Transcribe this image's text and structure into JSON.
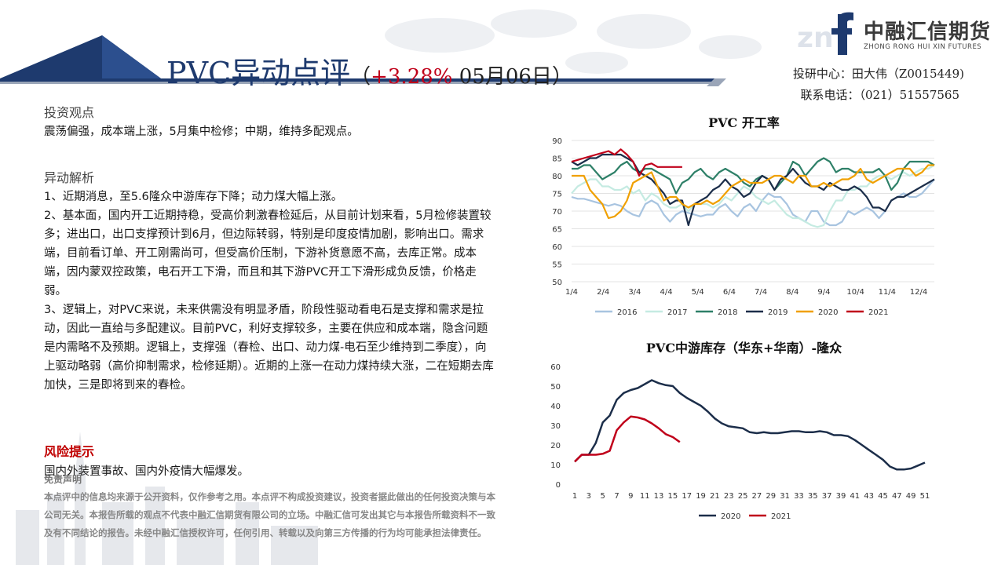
{
  "header": {
    "title_main": "PVC异动点评",
    "title_paren_open": "（",
    "title_pct": "+3.28%",
    "title_date": " 05月06日",
    "title_paren_close": "）",
    "contact_center": "投研中心：田大伟（Z0015449)",
    "contact_phone": "联系电话：（021）51557565",
    "logo_cn": "中融汇信期货",
    "logo_en": "ZHONG RONG HUI XIN FUTURES",
    "colors": {
      "title": "#1e3a6e",
      "pct": "#c0001a",
      "banner": "#1e3a6e"
    }
  },
  "sections": {
    "view_head": "投资观点",
    "view_text": "震荡偏强，成本端上涨，5月集中检修；中期，维持多配观点。",
    "analysis_head": "异动解析",
    "analysis_paras": [
      "1、近期消息，至5.6隆众中游库存下降；动力煤大幅上涨。",
      "2、基本面，国内开工近期持稳，受高价刺激春检延后，从目前计划来看，5月检修装置较多；进出口，出口支撑预计到6月，但边际转弱，特别是印度疫情加剧，影响出口。需求端，目前看订单、开工刚需尚可，但受高价压制，下游补货意愿不高，去库正常。成本端，因内蒙双控政策，电石开工下滑，而且和其下游PVC开工下滑形成负反馈，价格走弱。",
      "3、逻辑上，对PVC来说，未来供需没有明显矛盾，阶段性驱动看电石是支撑和需求是拉动，因此一直给与多配建议。目前PVC，利好支撑较多，主要在供应和成本端，隐含问题是内需略不及预期。逻辑上，支撑强（春检、出口、动力煤-电石至少维持到二季度），向上驱动略弱（高价抑制需求，检修延期）。近期的上涨一在动力煤持续大涨，二在短期去库加快，三是即将到来的春检。"
    ],
    "risk_head": "风险提示",
    "risk_text": "国内外装置事故、国内外疫情大幅爆发。",
    "disclaimer_head": "免责声明",
    "disclaimer_text": "本点评中的信息均来源于公开资料，仅作参考之用。本点评不构成投资建议，投资者据此做出的任何投资决策与本公司无关。本报告所载的观点不代表中融汇信期货有限公司的立场。中融汇信可发出其它与本报告所载资料不一致及有不同结论的报告。未经中融汇信授权许可，任何引用、转载以及向第三方传播的行为均可能承担法律责任。"
  },
  "chart_data": [
    {
      "type": "line",
      "title": "PVC 开工率",
      "x_ticks": [
        "1/4",
        "2/4",
        "3/4",
        "4/4",
        "5/4",
        "6/4",
        "7/4",
        "8/4",
        "9/4",
        "10/4",
        "11/4",
        "12/4"
      ],
      "ylim": [
        50,
        90
      ],
      "y_ticks": [
        50,
        55,
        60,
        65,
        70,
        75,
        80,
        85,
        90
      ],
      "grid": true,
      "legend": "bottom",
      "series": [
        {
          "name": "2016",
          "color": "#a8c4e0",
          "values": [
            74,
            73.5,
            73.5,
            73,
            72.5,
            72,
            71.5,
            72,
            71.5,
            70,
            69,
            68.5,
            72,
            73,
            72,
            69,
            67,
            69,
            70,
            69.5,
            69,
            68.5,
            69,
            69,
            71,
            72,
            70,
            68.5,
            71,
            72,
            70,
            73,
            75,
            74,
            74,
            72,
            69,
            68,
            67,
            70,
            70,
            67,
            66,
            66,
            67,
            70,
            69,
            70,
            71,
            70,
            68,
            70,
            73,
            74,
            75,
            74,
            74,
            75,
            77,
            79
          ]
        },
        {
          "name": "2017",
          "color": "#c5ebe2",
          "values": [
            75,
            77,
            78,
            79,
            79,
            77,
            77,
            76,
            76,
            77,
            75,
            76,
            73,
            75,
            74,
            72,
            71,
            71,
            72,
            70,
            72,
            72,
            72,
            71,
            72,
            74,
            73,
            75,
            77,
            76,
            74,
            73,
            72,
            73,
            71,
            69,
            68,
            68,
            67,
            66,
            65.5,
            66,
            70,
            73,
            73,
            76,
            76,
            77,
            77,
            79,
            80,
            80,
            79,
            80,
            81,
            80,
            81,
            82,
            82,
            83
          ]
        },
        {
          "name": "2018",
          "color": "#2e8068",
          "values": [
            82,
            82,
            83,
            83,
            81,
            79,
            80,
            81,
            83,
            84,
            82,
            81,
            82,
            82,
            81,
            80,
            79,
            75,
            78,
            79,
            81,
            82,
            80,
            79,
            81,
            82,
            81,
            80,
            78,
            77,
            79,
            80,
            79,
            76,
            78,
            80,
            84,
            83,
            80,
            82,
            84,
            85,
            84,
            81,
            82,
            82,
            81,
            81,
            81,
            81,
            82,
            80,
            76,
            78,
            82,
            84,
            84,
            84,
            84,
            83
          ]
        },
        {
          "name": "2019",
          "color": "#1c2e4a",
          "values": [
            84,
            83,
            84,
            85,
            85,
            86,
            86,
            86,
            86,
            85,
            84,
            81,
            80,
            79,
            77,
            75,
            72,
            73,
            73,
            66,
            72,
            73,
            74,
            76,
            77,
            79,
            77,
            76,
            74,
            75,
            78,
            80,
            79,
            76,
            79,
            80,
            82,
            80,
            78,
            77,
            77,
            76,
            78,
            77,
            76,
            76,
            77,
            76,
            74,
            71,
            71,
            70,
            73,
            74,
            74,
            75,
            76,
            77,
            78,
            79
          ]
        },
        {
          "name": "2020",
          "color": "#f0a000",
          "values": [
            80,
            80,
            80,
            76,
            74,
            72,
            68,
            68.5,
            70,
            73,
            78,
            79,
            80,
            81,
            77,
            73,
            74,
            74,
            72,
            71,
            72,
            72,
            73,
            72,
            73,
            75,
            77,
            78,
            79,
            78,
            78,
            78,
            79,
            80,
            80,
            79,
            78,
            80,
            80,
            77,
            77,
            78,
            77,
            78,
            79,
            79,
            80,
            82,
            79,
            78,
            79,
            80,
            81,
            82,
            82,
            82,
            80,
            81,
            83,
            83
          ]
        },
        {
          "name": "2021",
          "color": "#c0001a",
          "values": [
            84,
            84.5,
            85,
            85.5,
            86,
            86.5,
            87,
            86,
            87.5,
            86,
            84,
            80,
            83,
            83.5,
            82.5,
            82.5,
            82.5,
            82.5,
            82.5
          ]
        }
      ]
    },
    {
      "type": "line",
      "title": "PVC中游库存（华东+华南）-隆众",
      "x_ticks": [
        "1",
        "3",
        "5",
        "7",
        "9",
        "11",
        "13",
        "15",
        "17",
        "19",
        "21",
        "23",
        "25",
        "27",
        "29",
        "31",
        "33",
        "35",
        "37",
        "39",
        "41",
        "43",
        "45",
        "47",
        "49",
        "51"
      ],
      "ylim": [
        0,
        60
      ],
      "y_ticks": [
        0,
        10,
        20,
        30,
        40,
        50,
        60
      ],
      "grid": false,
      "legend": "bottom",
      "series": [
        {
          "name": "2020",
          "color": "#1c2e4a",
          "x": [
            1,
            2,
            3,
            4,
            5,
            6,
            7,
            8,
            9,
            10,
            11,
            12,
            13,
            14,
            15,
            16,
            17,
            18,
            19,
            20,
            21,
            22,
            23,
            24,
            25,
            26,
            27,
            28,
            29,
            30,
            31,
            32,
            33,
            34,
            35,
            36,
            37,
            38,
            39,
            40,
            41,
            42,
            43,
            44,
            45,
            46,
            47,
            48,
            49,
            50,
            51
          ],
          "values": [
            11.5,
            15,
            15,
            21,
            31.5,
            35,
            43,
            46.5,
            48,
            49,
            51,
            53,
            51.5,
            50.5,
            50,
            46.5,
            44,
            42,
            40,
            37,
            33.5,
            31,
            29.5,
            29,
            28.5,
            26.5,
            26,
            26.5,
            26,
            26,
            26.5,
            27,
            27,
            26.5,
            26.5,
            27,
            26.5,
            25,
            25,
            24.5,
            22.5,
            20,
            17.5,
            15,
            12.5,
            9,
            7.5,
            7.5,
            8,
            9.5,
            11
          ]
        },
        {
          "name": "2021",
          "color": "#c0001a",
          "x": [
            1,
            2,
            3,
            4,
            5,
            6,
            7,
            8,
            9,
            10,
            11,
            12,
            13,
            14,
            15,
            16
          ],
          "values": [
            11.5,
            15,
            15,
            15,
            15.5,
            17,
            27.5,
            31.5,
            34.5,
            34,
            33,
            31,
            28.5,
            25.5,
            24,
            21.5
          ]
        }
      ]
    }
  ]
}
